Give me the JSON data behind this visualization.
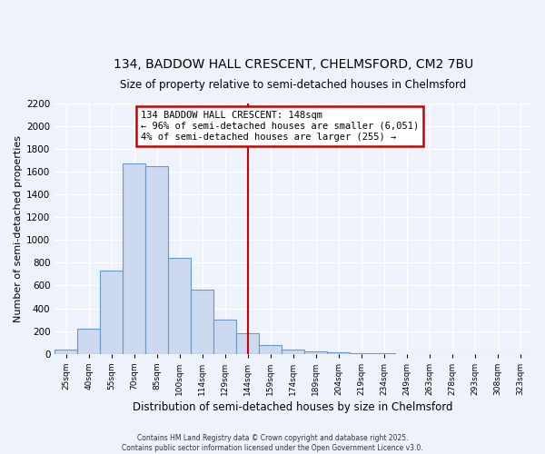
{
  "title_line1": "134, BADDOW HALL CRESCENT, CHELMSFORD, CM2 7BU",
  "title_line2": "Size of property relative to semi-detached houses in Chelmsford",
  "xlabel": "Distribution of semi-detached houses by size in Chelmsford",
  "ylabel": "Number of semi-detached properties",
  "bin_labels": [
    "25sqm",
    "40sqm",
    "55sqm",
    "70sqm",
    "85sqm",
    "100sqm",
    "114sqm",
    "129sqm",
    "144sqm",
    "159sqm",
    "174sqm",
    "189sqm",
    "204sqm",
    "219sqm",
    "234sqm",
    "249sqm",
    "263sqm",
    "278sqm",
    "293sqm",
    "308sqm",
    "323sqm"
  ],
  "bar_values": [
    40,
    220,
    730,
    1670,
    1650,
    840,
    560,
    300,
    180,
    75,
    35,
    20,
    10,
    5,
    2,
    1,
    0,
    0,
    0,
    0,
    0
  ],
  "bar_color": "#ccd9ef",
  "bar_edge_color": "#6699cc",
  "vline_index": 8,
  "vline_color": "#cc0000",
  "annotation_title": "134 BADDOW HALL CRESCENT: 148sqm",
  "annotation_line1": "← 96% of semi-detached houses are smaller (6,051)",
  "annotation_line2": "4% of semi-detached houses are larger (255) →",
  "annotation_box_facecolor": "#ffffff",
  "annotation_box_edgecolor": "#cc0000",
  "ylim_max": 2200,
  "yticks": [
    0,
    200,
    400,
    600,
    800,
    1000,
    1200,
    1400,
    1600,
    1800,
    2000,
    2200
  ],
  "footnote1": "Contains HM Land Registry data © Crown copyright and database right 2025.",
  "footnote2": "Contains public sector information licensed under the Open Government Licence v3.0.",
  "background_color": "#eef2fb",
  "grid_color": "#ffffff"
}
